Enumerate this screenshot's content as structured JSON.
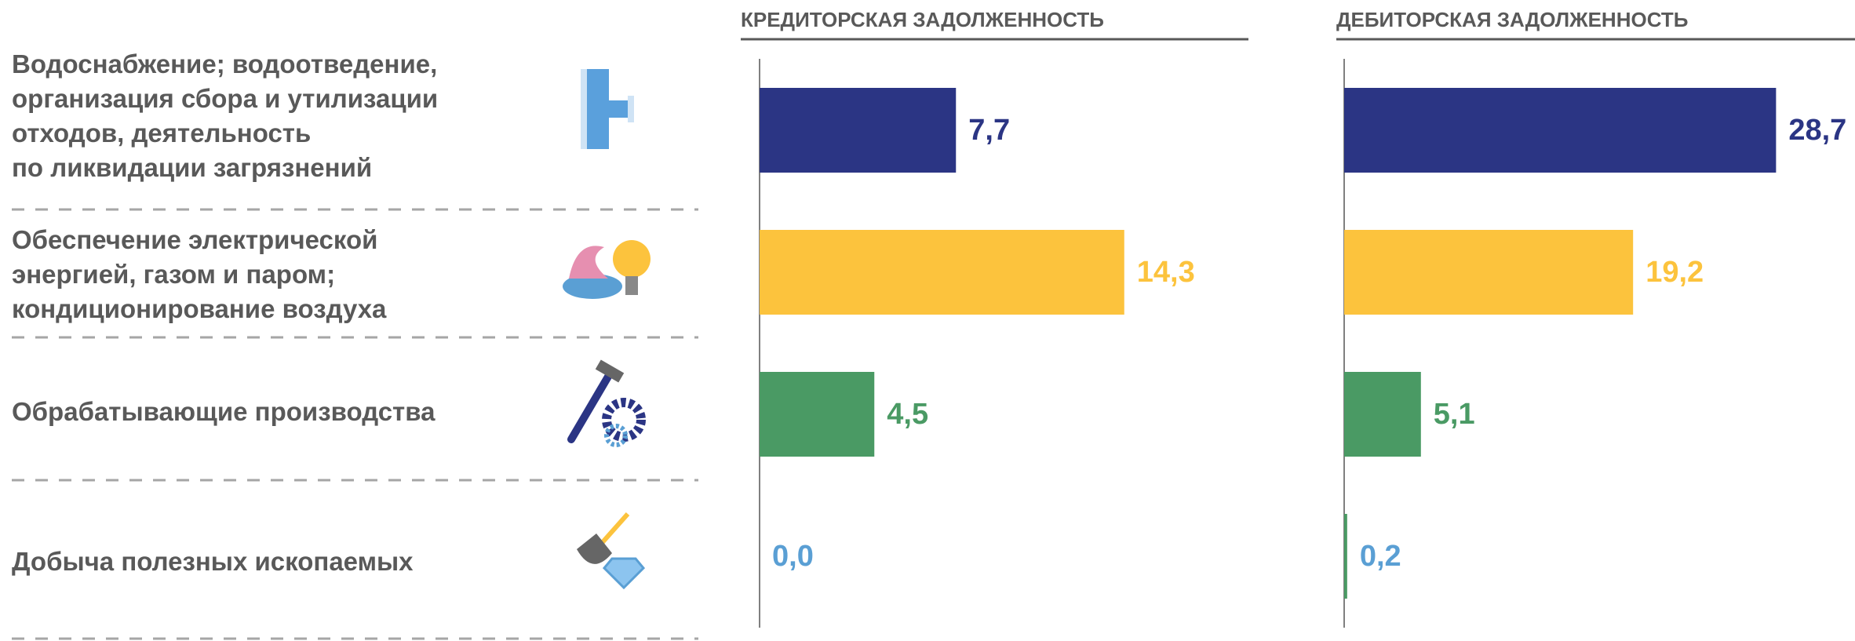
{
  "categories": [
    "Водоснабжение; водоотведение,\nорганизация сбора и утилизации\nотходов, деятельность\nпо ликвидации загрязнений",
    "Обеспечение электрической\nэнергией, газом и паром;\nкондиционирование воздуха",
    "Обрабатывающие производства",
    "Добыча полезных ископаемых"
  ],
  "chart_data": [
    {
      "type": "barh",
      "title": "КРЕДИТОРСКАЯ ЗАДОЛЖЕННОСТЬ",
      "values": [
        7.7,
        14.3,
        4.5,
        0.0
      ],
      "value_labels": [
        "7,7",
        "14,3",
        "4,5",
        "0,0"
      ],
      "colors": [
        "#2b3584",
        "#fcc33d",
        "#4a9a64",
        "#4a9a64"
      ],
      "label_colors": [
        "#2b3584",
        "#fcc33d",
        "#4a9a64",
        "#5a9fd4"
      ],
      "xlim": [
        0,
        20
      ]
    },
    {
      "type": "barh",
      "title": "ДЕБИТОРСКАЯ ЗАДОЛЖЕННОСТЬ",
      "values": [
        28.7,
        19.2,
        5.1,
        0.2
      ],
      "value_labels": [
        "28,7",
        "19,2",
        "5,1",
        "0,2"
      ],
      "colors": [
        "#2b3584",
        "#fcc33d",
        "#4a9a64",
        "#4a9a64"
      ],
      "label_colors": [
        "#2b3584",
        "#fcc33d",
        "#4a9a64",
        "#5a9fd4"
      ],
      "xlim": [
        0,
        34
      ]
    }
  ]
}
